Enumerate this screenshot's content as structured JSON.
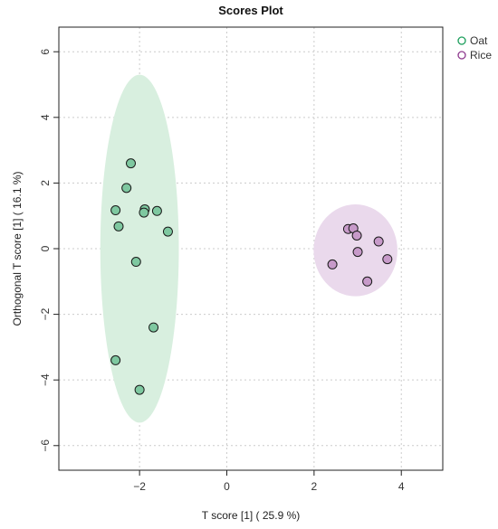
{
  "chart_data": {
    "type": "scatter",
    "title": "Scores Plot",
    "xlabel": "T score [1] ( 25.9 %)",
    "ylabel": "Orthogonal T score [1] ( 16.1 %)",
    "xlim": [
      -3.85,
      4.95
    ],
    "ylim": [
      -6.75,
      6.75
    ],
    "xticks": [
      -2,
      0,
      2,
      4
    ],
    "yticks": [
      -6,
      -4,
      -2,
      0,
      2,
      4,
      6
    ],
    "xtick_labels": [
      "−2",
      "0",
      "2",
      "4"
    ],
    "ytick_labels": [
      "−6",
      "−4",
      "−2",
      "0",
      "2",
      "4",
      "6"
    ],
    "grid": true,
    "legend_position": "top-right",
    "series": [
      {
        "name": "Oat",
        "color": "#1b9e5b",
        "fill": "#7ec8a0",
        "ellipse": {
          "cx": -2.0,
          "cy": 0.0,
          "rx": 0.9,
          "ry": 5.3,
          "fill": "#d8efdf"
        },
        "points": [
          {
            "x": -2.2,
            "y": 2.6
          },
          {
            "x": -2.3,
            "y": 1.85
          },
          {
            "x": -2.55,
            "y": 1.17
          },
          {
            "x": -1.88,
            "y": 1.2
          },
          {
            "x": -1.9,
            "y": 1.1
          },
          {
            "x": -1.6,
            "y": 1.15
          },
          {
            "x": -2.48,
            "y": 0.68
          },
          {
            "x": -1.35,
            "y": 0.52
          },
          {
            "x": -2.08,
            "y": -0.4
          },
          {
            "x": -1.68,
            "y": -2.4
          },
          {
            "x": -2.55,
            "y": -3.4
          },
          {
            "x": -2.0,
            "y": -4.3
          }
        ]
      },
      {
        "name": "Rice",
        "color": "#8e3a8e",
        "fill": "#c79ac9",
        "ellipse": {
          "cx": 2.95,
          "cy": -0.05,
          "rx": 0.96,
          "ry": 1.4,
          "fill": "#ead9ec"
        },
        "points": [
          {
            "x": 2.78,
            "y": 0.6
          },
          {
            "x": 2.9,
            "y": 0.62
          },
          {
            "x": 2.98,
            "y": 0.4
          },
          {
            "x": 3.48,
            "y": 0.22
          },
          {
            "x": 3.0,
            "y": -0.1
          },
          {
            "x": 2.42,
            "y": -0.48
          },
          {
            "x": 3.68,
            "y": -0.32
          },
          {
            "x": 3.22,
            "y": -1.0
          }
        ]
      }
    ]
  }
}
